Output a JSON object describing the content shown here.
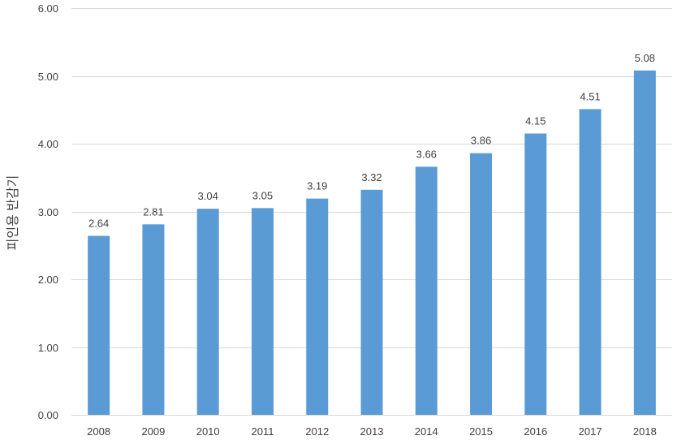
{
  "chart_data": {
    "type": "bar",
    "title": "",
    "xlabel": "",
    "ylabel": "피인용 반감기",
    "categories": [
      "2008",
      "2009",
      "2010",
      "2011",
      "2012",
      "2013",
      "2014",
      "2015",
      "2016",
      "2017",
      "2018"
    ],
    "values": [
      2.64,
      2.81,
      3.04,
      3.05,
      3.19,
      3.32,
      3.66,
      3.86,
      4.15,
      4.51,
      5.08
    ],
    "value_labels": [
      "2.64",
      "2.81",
      "3.04",
      "3.05",
      "3.19",
      "3.32",
      "3.66",
      "3.86",
      "4.15",
      "4.51",
      "5.08"
    ],
    "ylim": [
      0,
      6
    ],
    "yticks": [
      "0.00",
      "1.00",
      "2.00",
      "3.00",
      "4.00",
      "5.00",
      "6.00"
    ],
    "grid": true,
    "legend": "none",
    "bar_color": "#5B9BD5",
    "grid_color": "#D9D9D9"
  }
}
